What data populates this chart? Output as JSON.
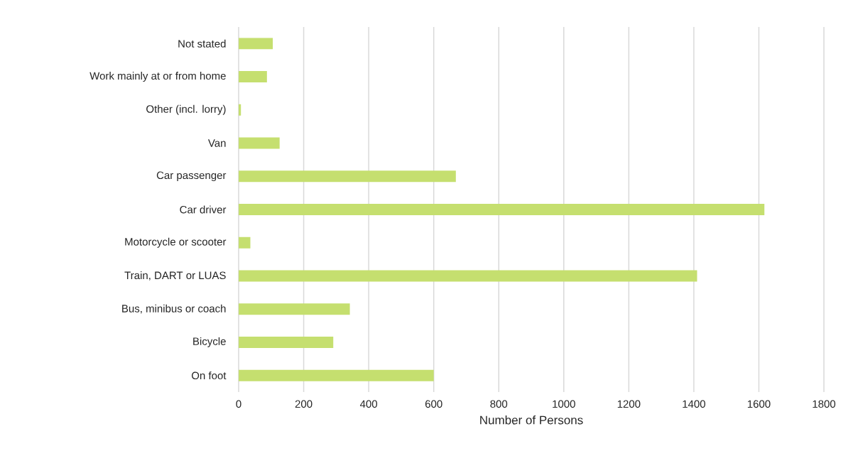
{
  "chart_data": {
    "type": "bar",
    "orientation": "horizontal",
    "categories": [
      "Not stated",
      "Work mainly at or from home",
      "Other (incl. lorry)",
      "Van",
      "Car passenger",
      "Car driver",
      "Motorcycle or scooter",
      "Train, DART or LUAS",
      "Bus, minibus or coach",
      "Bicycle",
      "On foot"
    ],
    "values": [
      105,
      87,
      7,
      126,
      668,
      1617,
      36,
      1410,
      342,
      291,
      600
    ],
    "color": "#c5df6f",
    "xlabel": "Number of Persons",
    "xlim": [
      0,
      1800
    ],
    "xticks": [
      0,
      200,
      400,
      600,
      800,
      1000,
      1200,
      1400,
      1600,
      1800
    ],
    "grid": "x"
  }
}
